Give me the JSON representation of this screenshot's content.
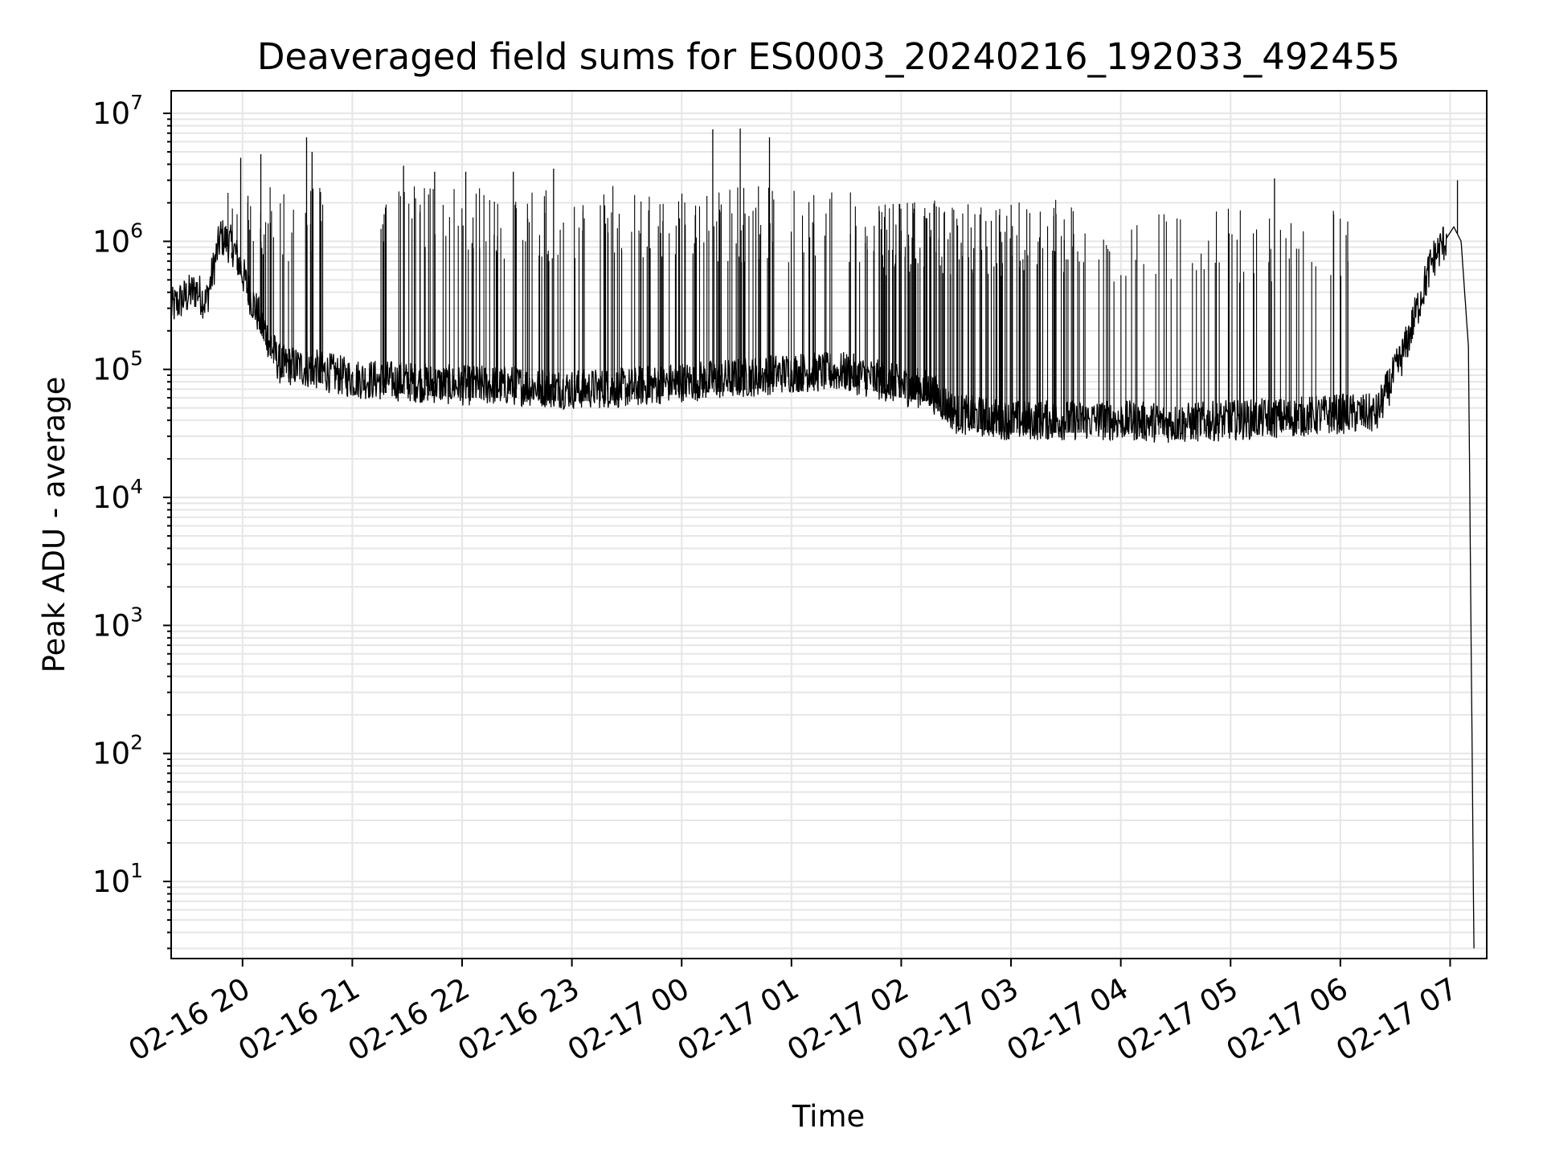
{
  "chart_data": {
    "type": "line",
    "title": "Deaveraged field sums for ES0003_20240216_192033_492455",
    "xlabel": "Time",
    "ylabel": "Peak ADU - average",
    "yscale": "log",
    "ylim": [
      2.5,
      15000000
    ],
    "xlim": [
      "2024-02-16T19:21",
      "2024-02-17T07:20"
    ],
    "x_ticks": [
      "02-16 20",
      "02-16 21",
      "02-16 22",
      "02-16 23",
      "02-17 00",
      "02-17 01",
      "02-17 02",
      "02-17 03",
      "02-17 04",
      "02-17 05",
      "02-17 06",
      "02-17 07"
    ],
    "y_ticks": [
      {
        "base": "10",
        "exp": "1"
      },
      {
        "base": "10",
        "exp": "2"
      },
      {
        "base": "10",
        "exp": "3"
      },
      {
        "base": "10",
        "exp": "4"
      },
      {
        "base": "10",
        "exp": "5"
      },
      {
        "base": "10",
        "exp": "6"
      },
      {
        "base": "10",
        "exp": "7"
      }
    ],
    "grid": true,
    "line_color": "#000000",
    "grid_color": "#e6e6e6",
    "series": [
      {
        "x": [
          "2024-02-16T19:21",
          "2024-02-16T19:30",
          "2024-02-16T19:35",
          "2024-02-16T19:40",
          "2024-02-16T19:48",
          "2024-02-16T19:55",
          "2024-02-16T20:05",
          "2024-02-16T20:20",
          "2024-02-16T20:40",
          "2024-02-16T21:00",
          "2024-02-16T21:30",
          "2024-02-16T22:00",
          "2024-02-16T22:30",
          "2024-02-16T23:00",
          "2024-02-16T23:30",
          "2024-02-17T00:00",
          "2024-02-17T00:30",
          "2024-02-17T01:00",
          "2024-02-17T01:30",
          "2024-02-17T02:00",
          "2024-02-17T02:15",
          "2024-02-17T02:30",
          "2024-02-17T03:00",
          "2024-02-17T03:30",
          "2024-02-17T04:00",
          "2024-02-17T04:30",
          "2024-02-17T05:00",
          "2024-02-17T05:30",
          "2024-02-17T06:00",
          "2024-02-17T06:20",
          "2024-02-17T06:35",
          "2024-02-17T06:50",
          "2024-02-17T07:02",
          "2024-02-17T07:06",
          "2024-02-17T07:10",
          "2024-02-17T07:13"
        ],
        "y": [
          300000,
          380000,
          420000,
          330000,
          1100000,
          900000,
          350000,
          110000,
          100000,
          85000,
          80000,
          75000,
          75000,
          70000,
          72000,
          80000,
          85000,
          95000,
          95000,
          75000,
          70000,
          45000,
          40000,
          40000,
          40000,
          38000,
          40000,
          42000,
          45000,
          45000,
          140000,
          700000,
          1300000,
          1000000,
          150000,
          3
        ]
      }
    ],
    "spikes": [
      {
        "x": "2024-02-16T19:59",
        "y": 4500000
      },
      {
        "x": "2024-02-16T20:10",
        "y": 4800000
      },
      {
        "x": "2024-02-16T20:35",
        "y": 6500000
      },
      {
        "x": "2024-02-16T20:38",
        "y": 5000000
      },
      {
        "x": "2024-02-16T21:28",
        "y": 3900000
      },
      {
        "x": "2024-02-16T21:45",
        "y": 3500000
      },
      {
        "x": "2024-02-16T22:02",
        "y": 3500000
      },
      {
        "x": "2024-02-16T22:28",
        "y": 3500000
      },
      {
        "x": "2024-02-16T22:50",
        "y": 3700000
      },
      {
        "x": "2024-02-17T00:17",
        "y": 7500000
      },
      {
        "x": "2024-02-17T00:32",
        "y": 7600000
      },
      {
        "x": "2024-02-17T00:48",
        "y": 6500000
      },
      {
        "x": "2024-02-17T05:24",
        "y": 3100000
      },
      {
        "x": "2024-02-17T07:04",
        "y": 3000000
      }
    ]
  }
}
